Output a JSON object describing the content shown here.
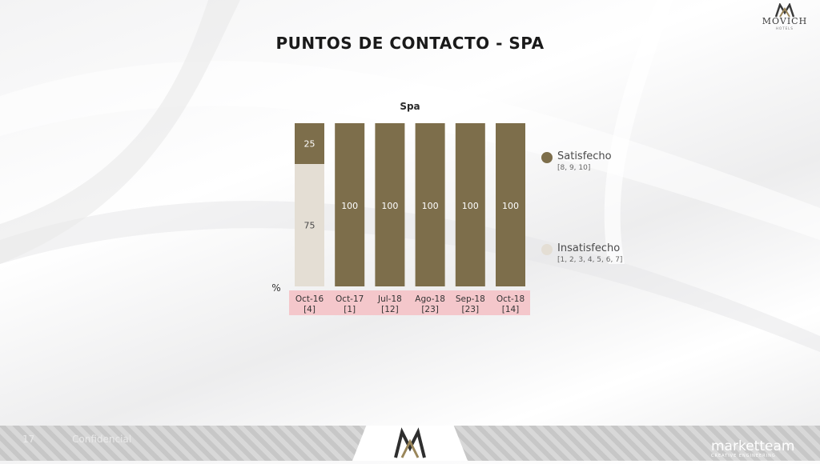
{
  "slide": {
    "title": "PUNTOS DE CONTACTO - SPA",
    "logo_text": "MOVICH",
    "logo_sub": "HOTELS",
    "page_number": "17",
    "confidential": "Confidencial",
    "footer_brand": "marketteam",
    "footer_brand_sub": "CREATIVE ENGINEERING"
  },
  "colors": {
    "satisfecho": "#7d6e4b",
    "insatisfecho": "#e4ded4",
    "category_band": "#f4c7cb",
    "label_light": "#ffffff",
    "label_dark": "#4a4a4a"
  },
  "chart_data": {
    "type": "bar",
    "stacked": true,
    "title": "Spa",
    "ylabel": "%",
    "ylim": [
      0,
      100
    ],
    "categories": [
      "Oct-16",
      "Oct-17",
      "Jul-18",
      "Ago-18",
      "Sep-18",
      "Oct-18"
    ],
    "category_counts": [
      "[4]",
      "[1]",
      "[12]",
      "[23]",
      "[23]",
      "[14]"
    ],
    "series": [
      {
        "name": "Insatisfecho",
        "values": [
          75,
          0,
          0,
          0,
          0,
          0
        ]
      },
      {
        "name": "Satisfecho",
        "values": [
          25,
          100,
          100,
          100,
          100,
          100
        ]
      }
    ],
    "legend": [
      {
        "name": "Satisfecho",
        "range": "[8, 9, 10]"
      },
      {
        "name": "Insatisfecho",
        "range": "[1, 2, 3, 4, 5, 6, 7]"
      }
    ],
    "legend_position": "right"
  }
}
